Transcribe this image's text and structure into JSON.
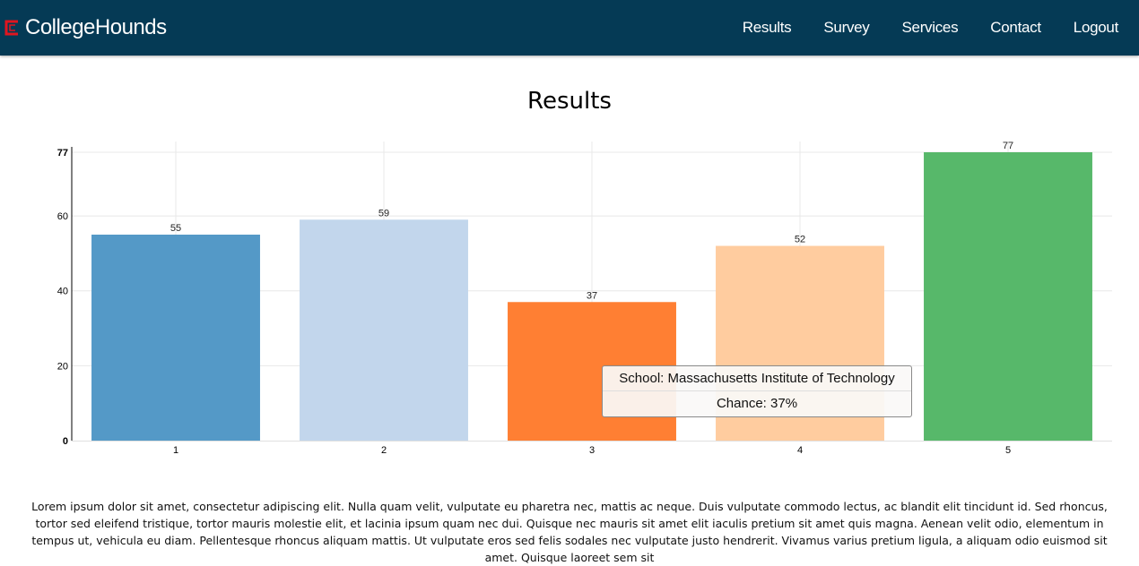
{
  "brand": {
    "name": "CollegeHounds",
    "logo_icon": "c-logo-icon",
    "logo_color": "#e0151f"
  },
  "nav": {
    "background": "#053a55",
    "items": [
      {
        "label": "Results"
      },
      {
        "label": "Survey"
      },
      {
        "label": "Services"
      },
      {
        "label": "Contact"
      },
      {
        "label": "Logout"
      }
    ]
  },
  "page": {
    "title": "Results"
  },
  "chart_data": {
    "type": "bar",
    "title": "",
    "xlabel": "",
    "ylabel": "",
    "categories": [
      "1",
      "2",
      "3",
      "4",
      "5"
    ],
    "values": [
      55,
      59,
      37,
      52,
      77
    ],
    "colors": [
      "#5499c7",
      "#c2d6ec",
      "#ff7f33",
      "#ffcc9f",
      "#57b86a"
    ],
    "ylim": [
      0,
      77
    ],
    "yticks": [
      "0",
      "20",
      "40",
      "60",
      "77"
    ],
    "grid": true,
    "show_value_labels": true
  },
  "tooltip": {
    "line1": "School: Massachusetts Institute of Technology",
    "line2": "Chance: 37%"
  },
  "body_text": "Lorem ipsum dolor sit amet, consectetur adipiscing elit. Nulla quam velit, vulputate eu pharetra nec, mattis ac neque. Duis vulputate commodo lectus, ac blandit elit tincidunt id. Sed rhoncus, tortor sed eleifend tristique, tortor mauris molestie elit, et lacinia ipsum quam nec dui. Quisque nec mauris sit amet elit iaculis pretium sit amet quis magna. Aenean velit odio, elementum in tempus ut, vehicula eu diam. Pellentesque rhoncus aliquam mattis. Ut vulputate eros sed felis sodales nec vulputate justo hendrerit. Vivamus varius pretium ligula, a aliquam odio euismod sit amet. Quisque laoreet sem sit"
}
